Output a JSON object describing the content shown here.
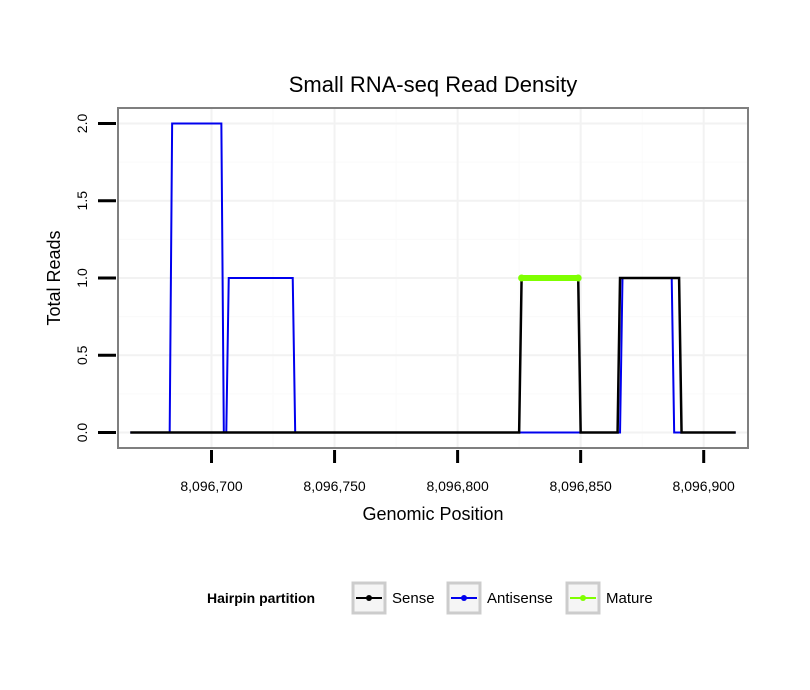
{
  "chart_data": {
    "type": "line",
    "title": "Small RNA-seq Read Density",
    "xlabel": "Genomic Position",
    "ylabel": "Total Reads",
    "xlim": [
      8096662,
      8096918
    ],
    "ylim": [
      -0.1,
      2.1
    ],
    "xticks": [
      8096700,
      8096750,
      8096800,
      8096850,
      8096900
    ],
    "xtick_labels": [
      "8,096,700",
      "8,096,750",
      "8,096,800",
      "8,096,850",
      "8,096,900"
    ],
    "yticks": [
      0,
      0.5,
      1,
      1.5,
      2
    ],
    "ytick_labels": [
      "0.0",
      "0.5",
      "1.0",
      "1.5",
      "2.0"
    ],
    "grid": true,
    "legend": {
      "title": "Hairpin partition",
      "position": "bottom",
      "entries": [
        "Sense",
        "Antisense",
        "Mature"
      ]
    },
    "series": [
      {
        "name": "Sense",
        "color": "#000000",
        "x": [
          8096667,
          8096825,
          8096826,
          8096849,
          8096850,
          8096865,
          8096866,
          8096890,
          8096891,
          8096913
        ],
        "y": [
          0,
          0,
          1,
          1,
          0,
          0,
          1,
          1,
          0,
          0
        ]
      },
      {
        "name": "Antisense",
        "color": "#0000ee",
        "x": [
          8096667,
          8096683,
          8096684,
          8096704,
          8096705,
          8096706,
          8096707,
          8096733,
          8096734,
          8096866,
          8096867,
          8096887,
          8096888,
          8096913
        ],
        "y": [
          0,
          0,
          2,
          2,
          0,
          0,
          1,
          1,
          0,
          0,
          1,
          1,
          0,
          0
        ]
      },
      {
        "name": "Mature",
        "color": "#7fff00",
        "x": [
          8096826,
          8096849
        ],
        "y": [
          1,
          1
        ]
      }
    ]
  }
}
